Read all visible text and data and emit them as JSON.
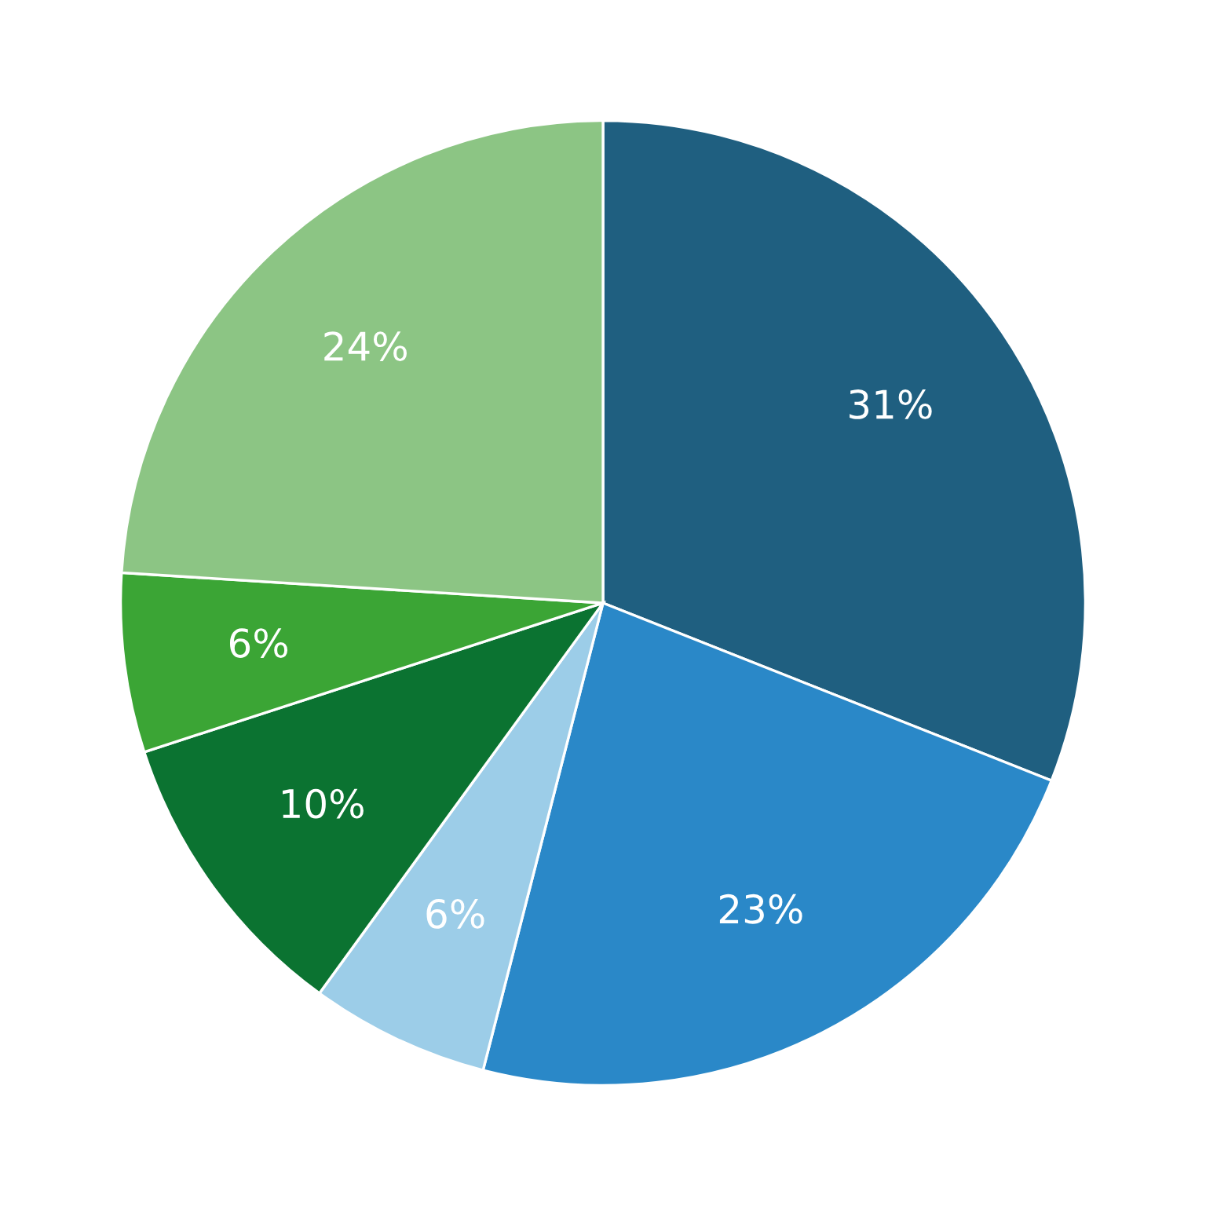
{
  "chart_data": {
    "type": "pie",
    "categories": [
      null,
      null,
      null,
      null,
      null,
      null
    ],
    "values": [
      31,
      23,
      6,
      10,
      6,
      24
    ],
    "colors": [
      "#1f5f80",
      "#2a88c8",
      "#9ccde8",
      "#0b7331",
      "#3ba535",
      "#8cc584"
    ],
    "value_labels": [
      "31%",
      "23%",
      "6%",
      "10%",
      "6%",
      "24%"
    ]
  }
}
